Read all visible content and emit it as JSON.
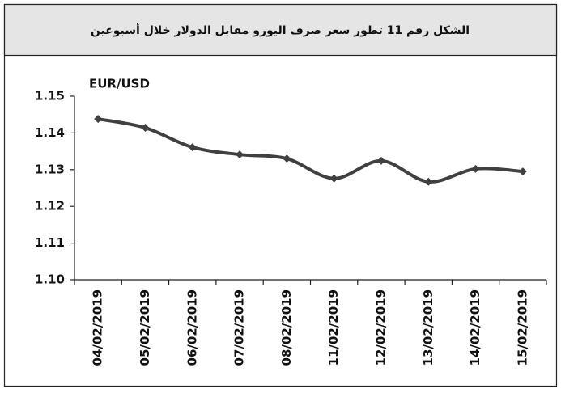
{
  "chart_data": {
    "type": "line",
    "title": "الشكل رقم 11 تطور سعر صرف اليورو مقابل الدولار خلال أسبوعين",
    "y_label": "EUR/USD",
    "categories": [
      "04/02/2019",
      "05/02/2019",
      "06/02/2019",
      "07/02/2019",
      "08/02/2019",
      "11/02/2019",
      "12/02/2019",
      "13/02/2019",
      "14/02/2019",
      "15/02/2019"
    ],
    "series": [
      {
        "name": "EUR/USD",
        "color": "#404040",
        "values": [
          1.1438,
          1.1414,
          1.1361,
          1.1341,
          1.133,
          1.1276,
          1.1324,
          1.1267,
          1.1302,
          1.1295
        ]
      }
    ],
    "ylim": [
      1.1,
      1.15
    ],
    "yticks": [
      {
        "value": 1.1,
        "label": "1.10"
      },
      1.11,
      1.12,
      1.13,
      1.14,
      1.15
    ],
    "smooth": true
  }
}
